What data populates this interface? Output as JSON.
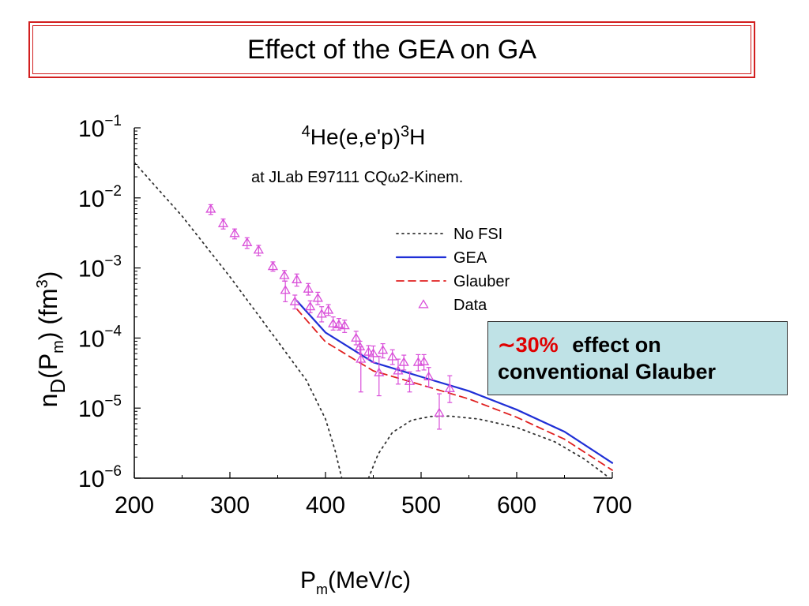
{
  "slide": {
    "title": "Effect of the GEA on GA"
  },
  "callout": {
    "highlight": "∼30%",
    "text_line1": "effect on",
    "text_line2": "conventional Glauber",
    "bg_color": "#bfe2e6",
    "highlight_color": "#e00000"
  },
  "chart_data": {
    "type": "scatter",
    "title": {
      "nucleus_mass": "4",
      "nucleus": "He(e,e'p)",
      "residual_mass": "3",
      "residual": "H"
    },
    "subtitle": "at JLab E97111 CQω2-Kinem.",
    "xlabel": {
      "main": "P",
      "sub": "m",
      "rest": "(MeV/c)"
    },
    "ylabel": {
      "n": "n",
      "n_sub": "D",
      "p": "(P",
      "p_sub": "m",
      "unit": ") (fm",
      "unit_sup": "3",
      "close": ")"
    },
    "xlim": [
      200,
      700
    ],
    "ylim": [
      1e-06,
      0.1
    ],
    "yscale": "log",
    "x_ticks": [
      "200",
      "300",
      "400",
      "500",
      "600",
      "700"
    ],
    "y_ticks": [
      {
        "base": "10",
        "exp": "−1"
      },
      {
        "base": "10",
        "exp": "−2"
      },
      {
        "base": "10",
        "exp": "−3"
      },
      {
        "base": "10",
        "exp": "−4"
      },
      {
        "base": "10",
        "exp": "−5"
      },
      {
        "base": "10",
        "exp": "−6"
      }
    ],
    "grid": false,
    "legend_position": "top-right",
    "series": [
      {
        "name": "No FSI",
        "kind": "line",
        "style": "dotted",
        "color": "#333333",
        "segments": [
          [
            [
              200,
              0.032
            ],
            [
              250,
              0.0055
            ],
            [
              300,
              0.00075
            ],
            [
              350,
              9e-05
            ],
            [
              380,
              2.5e-05
            ],
            [
              400,
              7e-06
            ],
            [
              410,
              2.5e-06
            ],
            [
              417,
              1e-06
            ]
          ],
          [
            [
              445,
              1e-06
            ],
            [
              455,
              2.2e-06
            ],
            [
              470,
              4.5e-06
            ],
            [
              490,
              6.7e-06
            ],
            [
              510,
              7.6e-06
            ],
            [
              530,
              7.7e-06
            ],
            [
              560,
              7e-06
            ],
            [
              600,
              5.3e-06
            ],
            [
              640,
              3.3e-06
            ],
            [
              670,
              1.9e-06
            ],
            [
              690,
              1.2e-06
            ],
            [
              697,
              1e-06
            ]
          ]
        ]
      },
      {
        "name": "GEA",
        "kind": "line",
        "style": "solid",
        "color": "#1f2fd6",
        "segments": [
          [
            [
              370,
              0.00034
            ],
            [
              400,
              0.00012
            ],
            [
              450,
              4.5e-05
            ],
            [
              500,
              2.8e-05
            ],
            [
              550,
              1.75e-05
            ],
            [
              600,
              9.5e-06
            ],
            [
              650,
              4.6e-06
            ],
            [
              700,
              1.65e-06
            ]
          ]
        ]
      },
      {
        "name": "Glauber",
        "kind": "line",
        "style": "dashed",
        "color": "#e02020",
        "segments": [
          [
            [
              370,
              0.00026
            ],
            [
              400,
              8.8e-05
            ],
            [
              450,
              3.4e-05
            ],
            [
              500,
              2.15e-05
            ],
            [
              550,
              1.35e-05
            ],
            [
              600,
              7.4e-06
            ],
            [
              650,
              3.6e-06
            ],
            [
              700,
              1.3e-06
            ]
          ]
        ]
      },
      {
        "name": "Data",
        "kind": "points",
        "marker": "triangle",
        "color": "#d94fd9",
        "points": [
          {
            "x": 280,
            "y": 0.0069,
            "lo": 0.0058,
            "hi": 0.008
          },
          {
            "x": 293,
            "y": 0.0043,
            "lo": 0.0036,
            "hi": 0.005
          },
          {
            "x": 305,
            "y": 0.0031,
            "lo": 0.0026,
            "hi": 0.0036
          },
          {
            "x": 318,
            "y": 0.0023,
            "lo": 0.0019,
            "hi": 0.0027
          },
          {
            "x": 330,
            "y": 0.0018,
            "lo": 0.0015,
            "hi": 0.0021
          },
          {
            "x": 345,
            "y": 0.00105,
            "lo": 0.0009,
            "hi": 0.00122
          },
          {
            "x": 357,
            "y": 0.00078,
            "lo": 0.00065,
            "hi": 0.00092
          },
          {
            "x": 358,
            "y": 0.00048,
            "lo": 0.00033,
            "hi": 0.00065
          },
          {
            "x": 370,
            "y": 0.00068,
            "lo": 0.00055,
            "hi": 0.00082
          },
          {
            "x": 368,
            "y": 0.00033,
            "lo": 0.00026,
            "hi": 0.00041
          },
          {
            "x": 382,
            "y": 0.0005,
            "lo": 0.00041,
            "hi": 0.0006
          },
          {
            "x": 384,
            "y": 0.00028,
            "lo": 0.00023,
            "hi": 0.00034
          },
          {
            "x": 392,
            "y": 0.00037,
            "lo": 0.0003,
            "hi": 0.00045
          },
          {
            "x": 396,
            "y": 0.00022,
            "lo": 0.00017,
            "hi": 0.00028
          },
          {
            "x": 403,
            "y": 0.00025,
            "lo": 0.00021,
            "hi": 0.0003
          },
          {
            "x": 408,
            "y": 0.00016,
            "lo": 0.00013,
            "hi": 0.0002
          },
          {
            "x": 414,
            "y": 0.000155,
            "lo": 0.00013,
            "hi": 0.00019
          },
          {
            "x": 420,
            "y": 0.00015,
            "lo": 0.00012,
            "hi": 0.00018
          },
          {
            "x": 432,
            "y": 0.0001,
            "lo": 8e-05,
            "hi": 0.000125
          },
          {
            "x": 436,
            "y": 7.5e-05,
            "lo": 6e-05,
            "hi": 9e-05
          },
          {
            "x": 437,
            "y": 5e-05,
            "lo": 1.7e-05,
            "hi": 7.5e-05
          },
          {
            "x": 445,
            "y": 6.3e-05,
            "lo": 5e-05,
            "hi": 7.8e-05
          },
          {
            "x": 450,
            "y": 6e-05,
            "lo": 4.5e-05,
            "hi": 7.7e-05
          },
          {
            "x": 456,
            "y": 3.2e-05,
            "lo": 1.5e-05,
            "hi": 5.5e-05
          },
          {
            "x": 460,
            "y": 6.7e-05,
            "lo": 5.2e-05,
            "hi": 8.3e-05
          },
          {
            "x": 470,
            "y": 5.4e-05,
            "lo": 4.2e-05,
            "hi": 6.8e-05
          },
          {
            "x": 476,
            "y": 3.4e-05,
            "lo": 2.2e-05,
            "hi": 5e-05
          },
          {
            "x": 482,
            "y": 4.5e-05,
            "lo": 3.5e-05,
            "hi": 5.7e-05
          },
          {
            "x": 488,
            "y": 2.4e-05,
            "lo": 1.7e-05,
            "hi": 3.3e-05
          },
          {
            "x": 497,
            "y": 4.5e-05,
            "lo": 3.4e-05,
            "hi": 5.8e-05
          },
          {
            "x": 503,
            "y": 4.6e-05,
            "lo": 3.5e-05,
            "hi": 5.8e-05
          },
          {
            "x": 508,
            "y": 2.8e-05,
            "lo": 2e-05,
            "hi": 3.8e-05
          },
          {
            "x": 519,
            "y": 8.5e-06,
            "lo": 5e-06,
            "hi": 1.6e-05
          },
          {
            "x": 530,
            "y": 1.9e-05,
            "lo": 1.2e-05,
            "hi": 2.9e-05
          }
        ]
      }
    ]
  }
}
